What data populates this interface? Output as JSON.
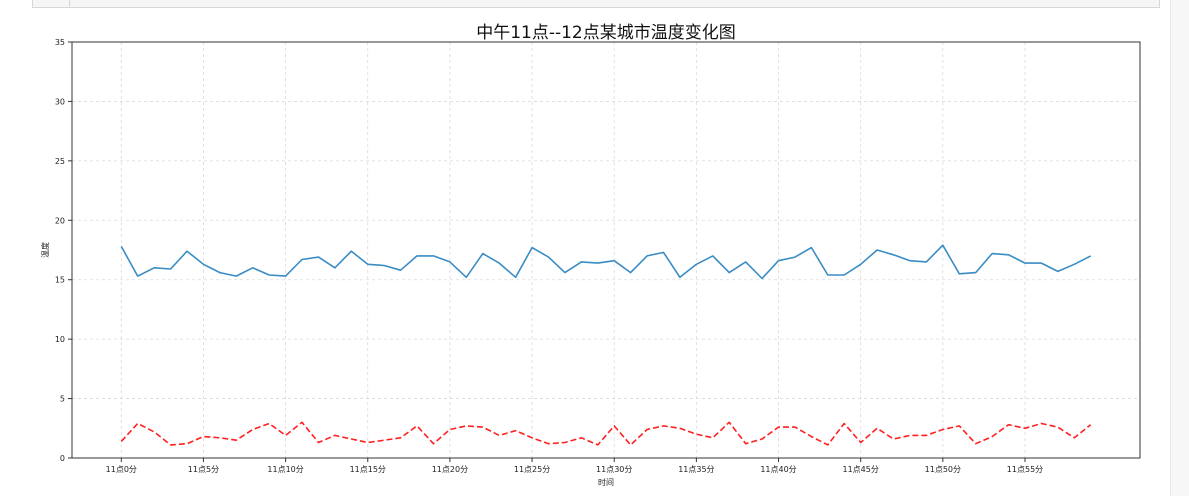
{
  "chart_data": {
    "type": "line",
    "title": "中午11点--12点某城市温度变化图",
    "xlabel": "时间",
    "ylabel": "温度",
    "xlim": [
      -3,
      62
    ],
    "ylim": [
      0,
      35
    ],
    "grid": true,
    "yticks": [
      0,
      5,
      10,
      15,
      20,
      25,
      30,
      35
    ],
    "xticks": [
      0,
      5,
      10,
      15,
      20,
      25,
      30,
      35,
      40,
      45,
      50,
      55
    ],
    "xtick_labels": [
      "11点0分",
      "11点5分",
      "11点10分",
      "11点15分",
      "11点20分",
      "11点25分",
      "11点30分",
      "11点35分",
      "11点40分",
      "11点45分",
      "11点50分",
      "11点55分"
    ],
    "x": [
      0,
      1,
      2,
      3,
      4,
      5,
      6,
      7,
      8,
      9,
      10,
      11,
      12,
      13,
      14,
      15,
      16,
      17,
      18,
      19,
      20,
      21,
      22,
      23,
      24,
      25,
      26,
      27,
      28,
      29,
      30,
      31,
      32,
      33,
      34,
      35,
      36,
      37,
      38,
      39,
      40,
      41,
      42,
      43,
      44,
      45,
      46,
      47,
      48,
      49,
      50,
      51,
      52,
      53,
      54,
      55,
      56,
      57,
      58,
      59
    ],
    "series": [
      {
        "color": "#3a8cc4",
        "style": "solid",
        "values": [
          17.8,
          15.3,
          16.0,
          15.9,
          17.4,
          16.3,
          15.6,
          15.3,
          16.0,
          15.4,
          15.3,
          16.7,
          16.9,
          16.0,
          17.4,
          16.3,
          16.2,
          15.8,
          17.0,
          17.0,
          16.5,
          15.2,
          17.2,
          16.4,
          15.2,
          17.7,
          16.9,
          15.6,
          16.5,
          16.4,
          16.6,
          15.6,
          17.0,
          17.3,
          15.2,
          16.3,
          17.0,
          15.6,
          16.5,
          15.1,
          16.6,
          16.9,
          17.7,
          15.4,
          15.4,
          16.3,
          17.5,
          17.1,
          16.6,
          16.5,
          17.9,
          15.5,
          15.6,
          17.2,
          17.1,
          16.4,
          16.4,
          15.7,
          16.3,
          17.0
        ]
      },
      {
        "color": "#ff2020",
        "style": "dashed",
        "values": [
          1.4,
          2.9,
          2.2,
          1.1,
          1.2,
          1.8,
          1.7,
          1.5,
          2.4,
          2.9,
          1.9,
          3.0,
          1.3,
          1.9,
          1.6,
          1.3,
          1.5,
          1.7,
          2.7,
          1.2,
          2.4,
          2.7,
          2.6,
          1.9,
          2.3,
          1.7,
          1.2,
          1.3,
          1.7,
          1.1,
          2.7,
          1.1,
          2.4,
          2.7,
          2.5,
          2.0,
          1.7,
          3.0,
          1.2,
          1.6,
          2.6,
          2.6,
          1.8,
          1.1,
          2.9,
          1.3,
          2.5,
          1.6,
          1.9,
          1.9,
          2.4,
          2.7,
          1.2,
          1.8,
          2.8,
          2.5,
          2.9,
          2.6,
          1.7,
          2.8
        ]
      }
    ]
  }
}
